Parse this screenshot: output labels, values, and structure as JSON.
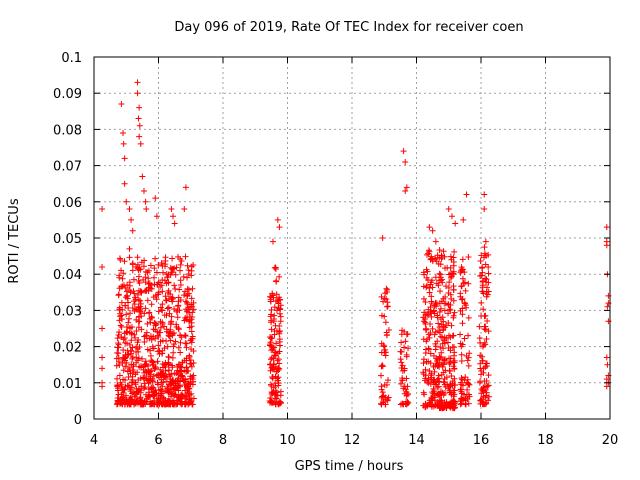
{
  "chart_data": {
    "type": "scatter",
    "title": "Day 096 of 2019, Rate Of TEC Index for receiver coen",
    "xlabel": "GPS time / hours",
    "ylabel": "ROTI / TECUs",
    "xlim": [
      4,
      20
    ],
    "ylim": [
      0,
      0.1
    ],
    "x_ticks": [
      4,
      6,
      8,
      10,
      12,
      14,
      16,
      18,
      20
    ],
    "x_tick_labels": [
      "4",
      "6",
      "8",
      "10",
      "12",
      "14",
      "16",
      "18",
      "20"
    ],
    "y_ticks": [
      0,
      0.01,
      0.02,
      0.03,
      0.04,
      0.05,
      0.06,
      0.07,
      0.08,
      0.09,
      0.1
    ],
    "y_tick_labels": [
      "0",
      "0.01",
      "0.02",
      "0.03",
      "0.04",
      "0.05",
      "0.06",
      "0.07",
      "0.08",
      "0.09",
      "0.1"
    ],
    "grid": true,
    "marker": "+",
    "marker_color": "#ff0000",
    "series": [
      {
        "name": "ROTI",
        "points": [
          [
            4.25,
            0.058
          ],
          [
            4.25,
            0.042
          ],
          [
            4.25,
            0.025
          ],
          [
            4.25,
            0.017
          ],
          [
            4.25,
            0.014
          ],
          [
            4.25,
            0.01
          ],
          [
            4.25,
            0.009
          ],
          [
            4.85,
            0.087
          ],
          [
            4.9,
            0.079
          ],
          [
            4.92,
            0.076
          ],
          [
            4.95,
            0.072
          ],
          [
            4.95,
            0.065
          ],
          [
            5.0,
            0.06
          ],
          [
            5.1,
            0.058
          ],
          [
            5.15,
            0.055
          ],
          [
            5.2,
            0.052
          ],
          [
            5.1,
            0.047
          ],
          [
            5.35,
            0.093
          ],
          [
            5.35,
            0.09
          ],
          [
            5.4,
            0.086
          ],
          [
            5.38,
            0.083
          ],
          [
            5.42,
            0.081
          ],
          [
            5.4,
            0.078
          ],
          [
            5.45,
            0.076
          ],
          [
            5.5,
            0.067
          ],
          [
            5.55,
            0.063
          ],
          [
            5.6,
            0.06
          ],
          [
            5.62,
            0.058
          ],
          [
            5.9,
            0.061
          ],
          [
            5.95,
            0.056
          ],
          [
            6.4,
            0.058
          ],
          [
            6.45,
            0.056
          ],
          [
            6.5,
            0.054
          ],
          [
            6.85,
            0.064
          ],
          [
            6.8,
            0.058
          ],
          [
            9.55,
            0.049
          ],
          [
            9.7,
            0.055
          ],
          [
            9.75,
            0.053
          ],
          [
            12.95,
            0.05
          ],
          [
            13.6,
            0.074
          ],
          [
            13.65,
            0.071
          ],
          [
            13.7,
            0.064
          ],
          [
            13.65,
            0.063
          ],
          [
            14.4,
            0.053
          ],
          [
            14.5,
            0.052
          ],
          [
            14.6,
            0.049
          ],
          [
            15.0,
            0.058
          ],
          [
            15.1,
            0.056
          ],
          [
            15.2,
            0.054
          ],
          [
            15.45,
            0.055
          ],
          [
            15.55,
            0.062
          ],
          [
            16.1,
            0.062
          ],
          [
            16.1,
            0.058
          ],
          [
            16.15,
            0.049
          ],
          [
            19.9,
            0.053
          ],
          [
            19.9,
            0.049
          ],
          [
            19.9,
            0.048
          ],
          [
            19.92,
            0.04
          ],
          [
            19.95,
            0.034
          ],
          [
            19.95,
            0.032
          ],
          [
            19.92,
            0.031
          ],
          [
            19.95,
            0.027
          ],
          [
            19.9,
            0.017
          ],
          [
            19.92,
            0.015
          ],
          [
            19.95,
            0.012
          ],
          [
            19.9,
            0.011
          ],
          [
            19.95,
            0.01
          ],
          [
            19.9,
            0.009
          ]
        ]
      }
    ],
    "dense_clusters": [
      {
        "x_range": [
          4.7,
          7.1
        ],
        "y_range": [
          0.004,
          0.045
        ],
        "count": 900
      },
      {
        "x_range": [
          9.45,
          9.8
        ],
        "y_range": [
          0.004,
          0.042
        ],
        "count": 140
      },
      {
        "x_range": [
          12.9,
          13.15
        ],
        "y_range": [
          0.004,
          0.036
        ],
        "count": 50
      },
      {
        "x_range": [
          13.5,
          13.75
        ],
        "y_range": [
          0.004,
          0.026
        ],
        "count": 45
      },
      {
        "x_range": [
          14.2,
          15.2
        ],
        "y_range": [
          0.003,
          0.047
        ],
        "count": 380
      },
      {
        "x_range": [
          15.35,
          15.65
        ],
        "y_range": [
          0.004,
          0.045
        ],
        "count": 80
      },
      {
        "x_range": [
          15.95,
          16.25
        ],
        "y_range": [
          0.004,
          0.048
        ],
        "count": 100
      }
    ]
  }
}
